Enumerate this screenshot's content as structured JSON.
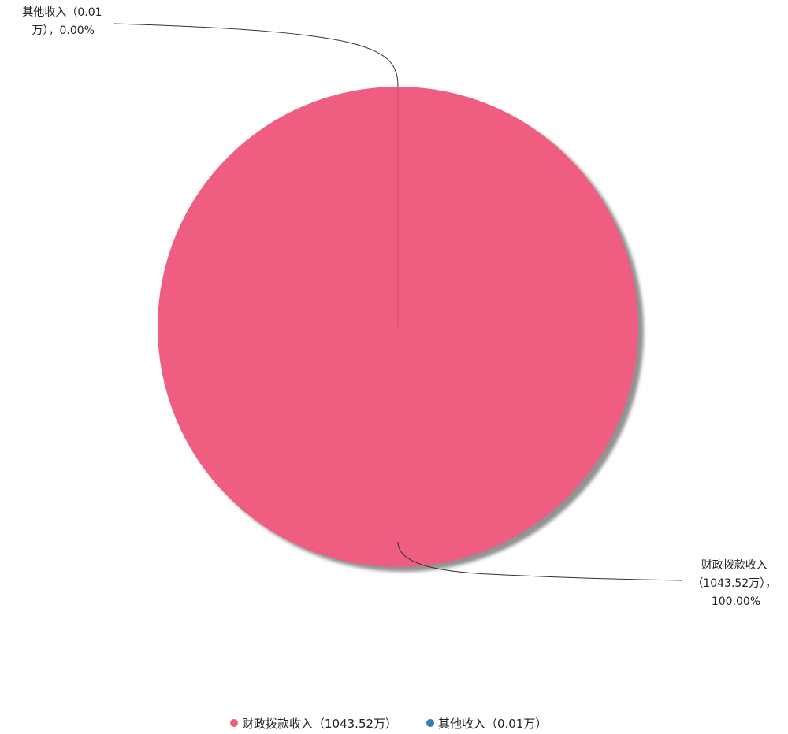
{
  "chart_data": {
    "type": "pie",
    "unit": "万",
    "slices": [
      {
        "name": "财政拨款收入",
        "value": 1043.52,
        "percent": "100.00%",
        "color": "#ef5d80",
        "label_lines": [
          "财政拨款收入",
          "（1043.52万），",
          "100.00%"
        ],
        "legend_label": "财政拨款收入（1043.52万）"
      },
      {
        "name": "其他收入",
        "value": 0.01,
        "percent": "0.00%",
        "color": "#2f7fb5",
        "label_lines": [
          "其他收入（0.01",
          "万），0.00%"
        ],
        "legend_label": "其他收入（0.01万）"
      }
    ],
    "legend_position": "bottom-center"
  }
}
